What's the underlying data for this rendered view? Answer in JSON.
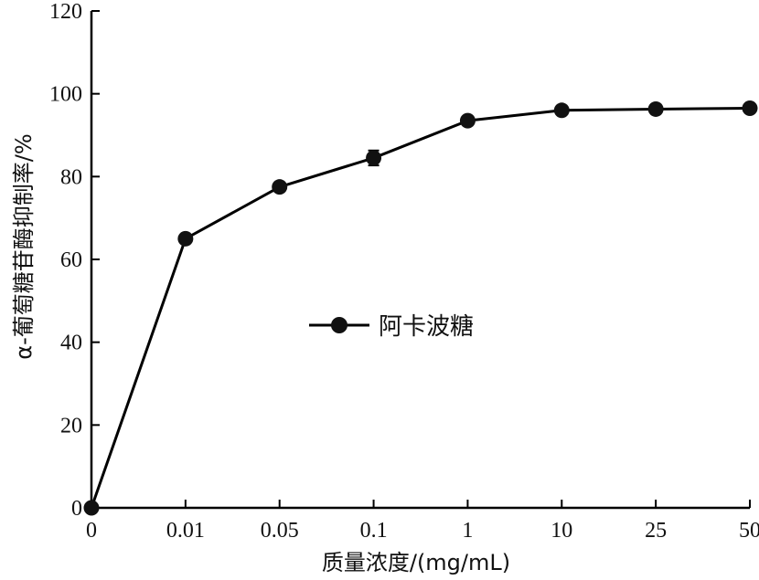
{
  "chart_data": {
    "type": "line",
    "xlabel": "质量浓度/(mg/mL)",
    "ylabel": "α-葡萄糖苷酶抑制率/%",
    "categories": [
      "0",
      "0.01",
      "0.05",
      "0.1",
      "1",
      "10",
      "25",
      "50"
    ],
    "ylim": [
      0,
      120
    ],
    "yticks": [
      "0",
      "20",
      "40",
      "60",
      "80",
      "100",
      "120"
    ],
    "grid": false,
    "legend_position": "center",
    "series": [
      {
        "name": "阿卡波糖",
        "values": [
          0,
          65,
          77.5,
          84.5,
          93.5,
          96,
          96.3,
          96.5
        ],
        "error": [
          0,
          0,
          0,
          1.8,
          0,
          0,
          0,
          0
        ]
      }
    ]
  },
  "colors": {
    "line": "#000000",
    "marker": "#111111",
    "axis": "#000000"
  }
}
